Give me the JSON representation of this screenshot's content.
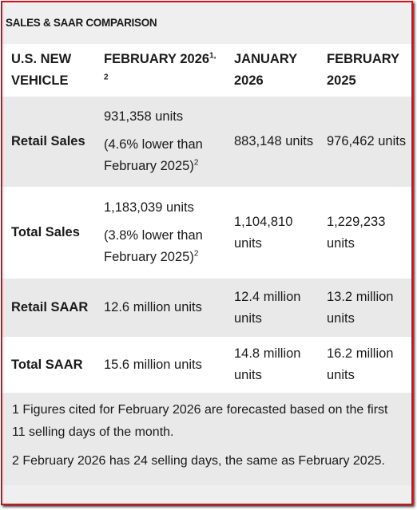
{
  "title": "SALES & SAAR COMPARISON",
  "table": {
    "header": [
      "U.S. NEW VEHICLE",
      "FEBRUARY 2026",
      "JANUARY 2026",
      "FEBRUARY 2025"
    ],
    "header_sup": "1, 2",
    "rows": [
      {
        "label": "Retail Sales",
        "feb_2026": "931,358 units",
        "feb_2026_note": "(4.6% lower than February 2025)",
        "feb_2026_note_sup": "2",
        "jan_2026": "883,148 units",
        "feb_2025": "976,462 units"
      },
      {
        "label": "Total Sales",
        "feb_2026": "1,183,039 units",
        "feb_2026_note": "(3.8% lower than February 2025)",
        "feb_2026_note_sup": "2",
        "jan_2026": "1,104,810 units",
        "feb_2025": "1,229,233 units"
      },
      {
        "label": "Retail SAAR",
        "feb_2026": "12.6 million units",
        "jan_2026": "12.4 million units",
        "feb_2025": "13.2 million units"
      },
      {
        "label": "Total SAAR",
        "feb_2026": "15.6 million units",
        "jan_2026": "14.8 million units",
        "feb_2025": "16.2 million units"
      }
    ]
  },
  "footnotes": [
    "1 Figures cited for February 2026 are forecasted based on the first 11 selling days of the month.",
    "2 February 2026 has 24 selling days, the same as February 2025."
  ]
}
